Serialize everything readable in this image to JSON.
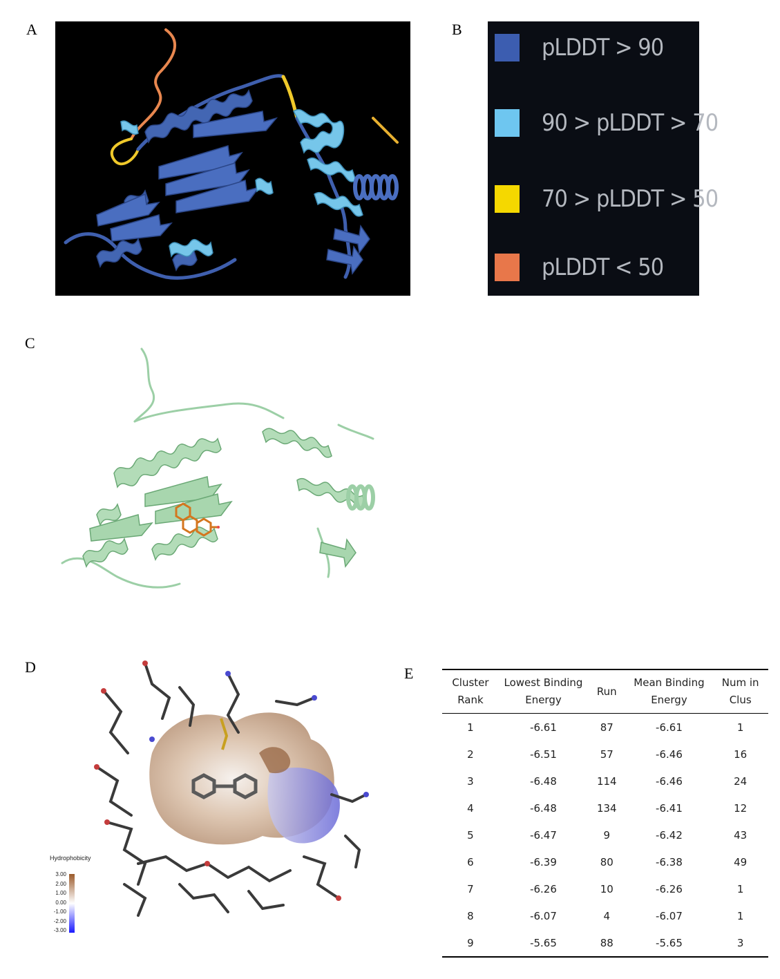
{
  "panel_labels": {
    "a": "A",
    "b": "B",
    "c": "C",
    "d": "D",
    "e": "E"
  },
  "legend": [
    {
      "label": "pLDDT > 90",
      "color": "#3c5db0"
    },
    {
      "label": "90 > pLDDT > 70",
      "color": "#6ec6f0"
    },
    {
      "label": "70 > pLDDT > 50",
      "color": "#f5d800"
    },
    {
      "label": "pLDDT < 50",
      "color": "#e8774a"
    }
  ],
  "hydrophobicity": {
    "title": "Hydrophobicity",
    "ticks": [
      "3.00",
      "2.00",
      "1.00",
      "0.00",
      "-1.00",
      "-2.00",
      "-3.00"
    ]
  },
  "table": {
    "headers": [
      {
        "l1": "Cluster",
        "l2": "Rank"
      },
      {
        "l1": "Lowest Binding",
        "l2": "Energy"
      },
      {
        "l1": "Run",
        "l2": ""
      },
      {
        "l1": "Mean Binding",
        "l2": "Energy"
      },
      {
        "l1": "Num in",
        "l2": "Clus"
      }
    ],
    "rows": [
      [
        "1",
        "-6.61",
        "87",
        "-6.61",
        "1"
      ],
      [
        "2",
        "-6.51",
        "57",
        "-6.46",
        "16"
      ],
      [
        "3",
        "-6.48",
        "114",
        "-6.46",
        "24"
      ],
      [
        "4",
        "-6.48",
        "134",
        "-6.41",
        "12"
      ],
      [
        "5",
        "-6.47",
        "9",
        "-6.42",
        "43"
      ],
      [
        "6",
        "-6.39",
        "80",
        "-6.38",
        "49"
      ],
      [
        "7",
        "-6.26",
        "10",
        "-6.26",
        "1"
      ],
      [
        "8",
        "-6.07",
        "4",
        "-6.07",
        "1"
      ],
      [
        "9",
        "-5.65",
        "88",
        "-5.65",
        "3"
      ]
    ]
  }
}
